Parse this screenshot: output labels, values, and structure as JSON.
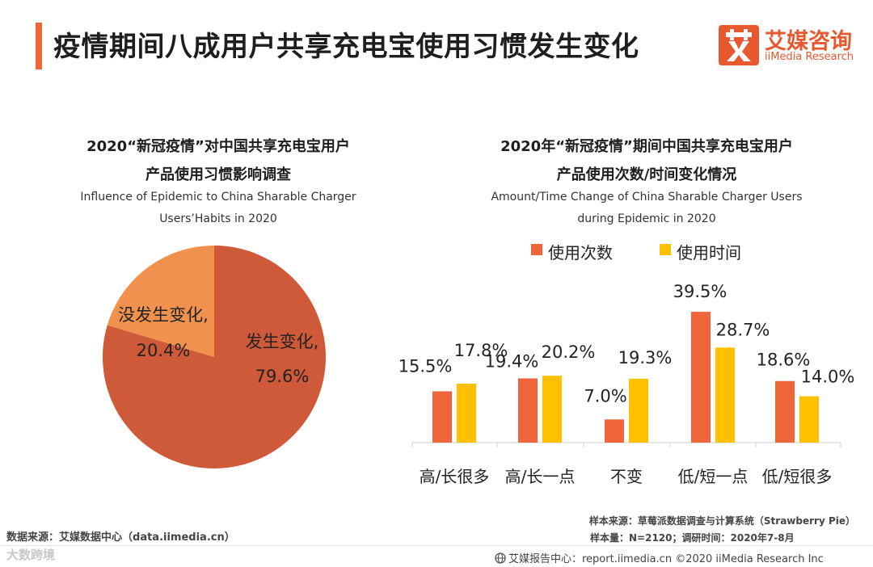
{
  "header": {
    "title": "疫情期间八成用户共享充电宝使用习惯发生变化",
    "logo_cn": "艾媒咨询",
    "logo_en": "iiMedia Research"
  },
  "pie": {
    "title_line1": "2020“新冠疫情”对中国共享充电宝用户",
    "title_line2": "产品使用习惯影响调查",
    "subtitle_line1": "Influence of Epidemic to China Sharable Charger",
    "subtitle_line2": "Users’Habits  in 2020"
  },
  "bar": {
    "title_line1": "2020年“新冠疫情”期间中国共享充电宝用户",
    "title_line2": "产品使用次数/时间变化情况",
    "subtitle_line1": "Amount/Time Change of China Sharable Charger Users",
    "subtitle_line2": "during Epidemic in 2020"
  },
  "colors": {
    "accent": "#f0663a",
    "pie_main": "#cf5a3a",
    "pie_minor": "#f0924e",
    "series_count": "#f0663a",
    "series_time": "#ffc000"
  },
  "chart_data": [
    {
      "type": "pie",
      "slices": [
        {
          "label": "发生变化,",
          "value": 79.6,
          "value_label": "79.6%",
          "color": "#cf5a3a"
        },
        {
          "label": "没发生变化,",
          "value": 20.4,
          "value_label": "20.4%",
          "color": "#f0924e"
        }
      ]
    },
    {
      "type": "bar",
      "categories": [
        "高/长很多",
        "高/长一点",
        "不变",
        "低/短一点",
        "低/短很多"
      ],
      "series": [
        {
          "name": "使用次数",
          "values": [
            15.5,
            19.4,
            7.0,
            39.5,
            18.6
          ],
          "labels": [
            "15.5%",
            "19.4%",
            "7.0%",
            "39.5%",
            "18.6%"
          ],
          "color": "#f0663a"
        },
        {
          "name": "使用时间",
          "values": [
            17.8,
            20.2,
            19.3,
            28.7,
            14.0
          ],
          "labels": [
            "17.8%",
            "20.2%",
            "19.3%",
            "28.7%",
            "14.0%"
          ],
          "color": "#ffc000"
        }
      ],
      "ylim": [
        0,
        40
      ],
      "grid": false,
      "legend": "top"
    }
  ],
  "footer": {
    "source_label": "数据来源：",
    "source_value": "艾媒数据中心（data.iimedia.cn）",
    "sample_source": "样本来源：草莓派数据调查与计算系统（Strawberry Pie）",
    "sample_size": "样本量：N=2120；调研时间：2020年7-8月",
    "watermark": "大数跨境",
    "report_center": "艾媒报告中心：report.iimedia.cn  ©2020  iiMedia Research  Inc"
  }
}
